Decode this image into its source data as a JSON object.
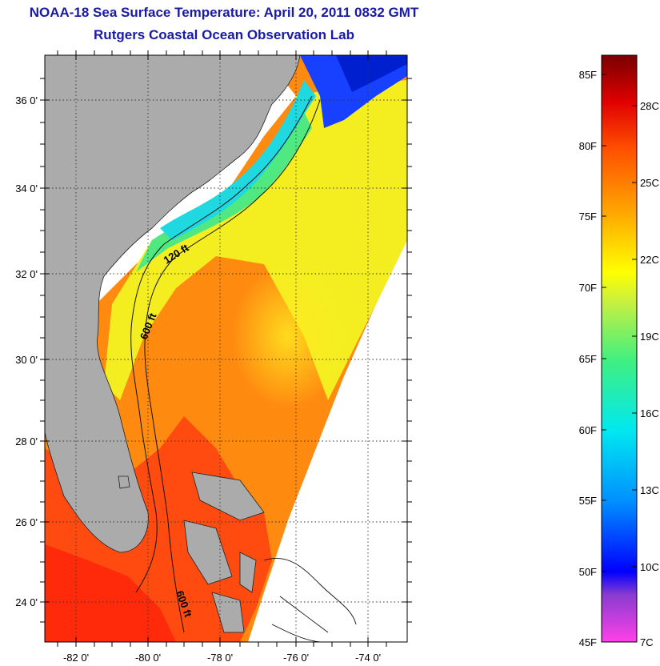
{
  "title": "NOAA-18 Sea Surface Temperature:  April 20, 2011 0832 GMT",
  "subtitle": "Rutgers Coastal Ocean Observation Lab",
  "map": {
    "lat_labels": [
      "36 0'",
      "34 0'",
      "32 0'",
      "30 0'",
      "28 0'",
      "26 0'",
      "24 0'"
    ],
    "lon_labels": [
      "-82 0'",
      "-80 0'",
      "-78 0'",
      "-76 0'",
      "-74 0'"
    ],
    "contour_labels": [
      "120 ft",
      "600 ft",
      "600 ft"
    ],
    "grid": true,
    "colors": {
      "land": "#ababab",
      "no_data": "#ffffff",
      "gridline": "#333333"
    }
  },
  "colorbar": {
    "fahrenheit_labels": [
      "85F",
      "80F",
      "75F",
      "70F",
      "65F",
      "60F",
      "55F",
      "50F",
      "45F"
    ],
    "celsius_labels": [
      "28C",
      "25C",
      "22C",
      "19C",
      "16C",
      "13C",
      "10C",
      "7C"
    ],
    "scale_colors": [
      "#ff40e8",
      "#8a3cd0",
      "#0000ff",
      "#0090ff",
      "#00e8f0",
      "#40f080",
      "#c8f040",
      "#ffff00",
      "#ffa000",
      "#ff5000",
      "#e00000",
      "#a00000",
      "#7a0000"
    ]
  }
}
